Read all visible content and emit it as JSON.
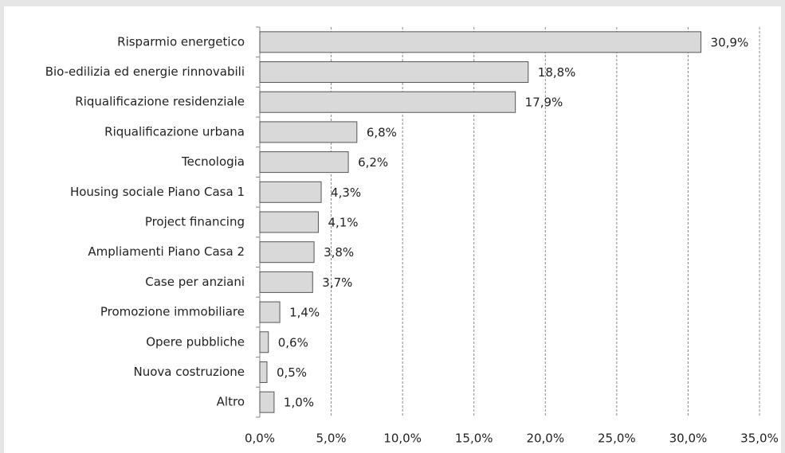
{
  "chart_data": {
    "type": "bar",
    "orientation": "horizontal",
    "categories": [
      "Risparmio energetico",
      "Bio-edilizia ed energie rinnovabili",
      "Riqualificazione residenziale",
      "Riqualificazione urbana",
      "Tecnologia",
      "Housing sociale Piano Casa 1",
      "Project financing",
      "Ampliamenti Piano Casa 2",
      "Case per anziani",
      "Promozione immobiliare",
      "Opere pubbliche",
      "Nuova costruzione",
      "Altro"
    ],
    "values": [
      30.9,
      18.8,
      17.9,
      6.8,
      6.2,
      4.3,
      4.1,
      3.8,
      3.7,
      1.4,
      0.6,
      0.5,
      1.0
    ],
    "value_labels": [
      "30,9%",
      "18,8%",
      "17,9%",
      "6,8%",
      "6,2%",
      "4,3%",
      "4,1%",
      "3,8%",
      "3,7%",
      "1,4%",
      "0,6%",
      "0,5%",
      "1,0%"
    ],
    "color": "#d9d9d9",
    "xlim": [
      0,
      35
    ],
    "xticks": [
      {
        "value": 0,
        "label": "0,0%"
      },
      {
        "value": 5,
        "label": "5,0%"
      },
      {
        "value": 10,
        "label": "10,0%"
      },
      {
        "value": 15,
        "label": "15,0%"
      },
      {
        "value": 20,
        "label": "20,0%"
      },
      {
        "value": 25,
        "label": "25,0%"
      },
      {
        "value": 30,
        "label": "30,0%"
      },
      {
        "value": 35,
        "label": "35,0%"
      }
    ],
    "grid": true
  }
}
